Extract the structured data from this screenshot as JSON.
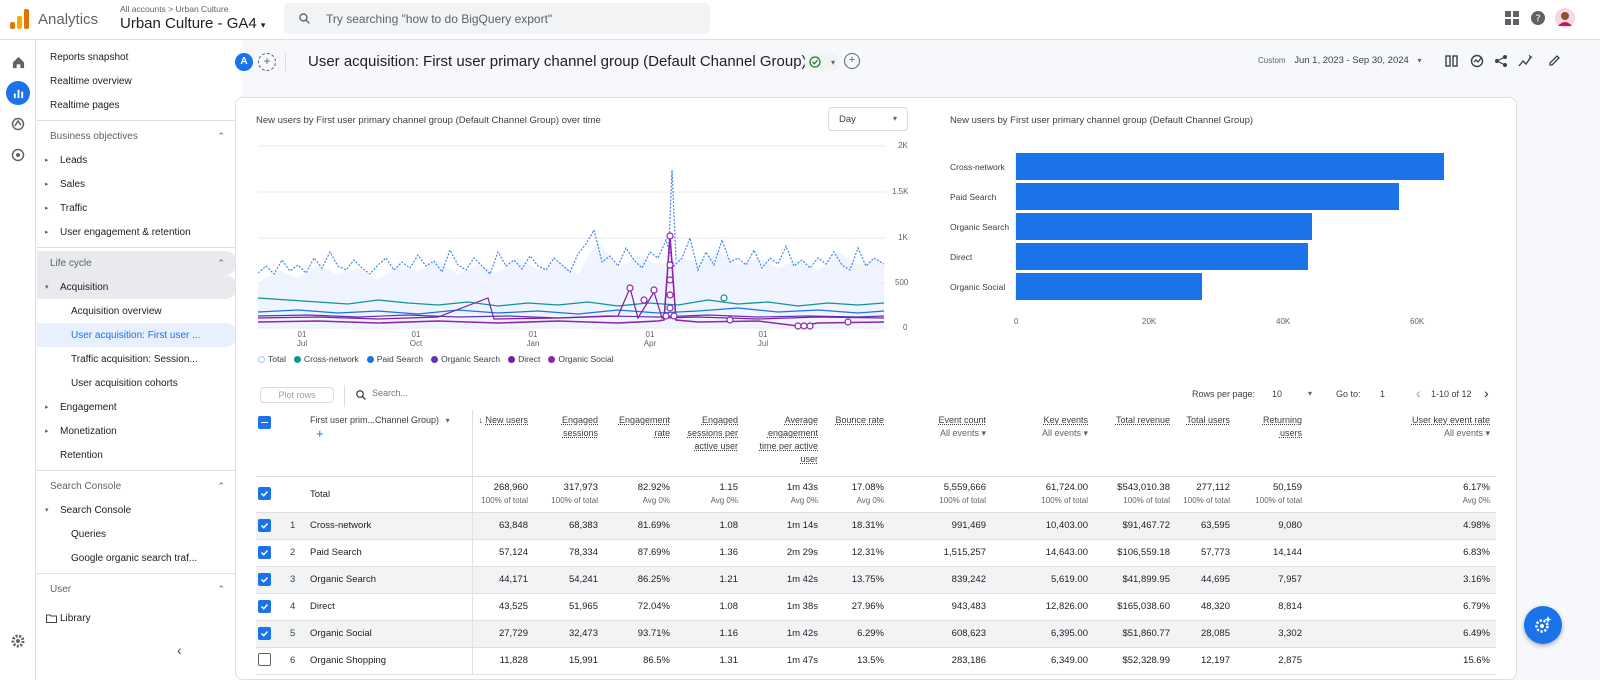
{
  "top": {
    "app_name": "Analytics",
    "breadcrumb": "All accounts > Urban Culture",
    "property": "Urban Culture - GA4",
    "search_placeholder": "Try searching \"how to do BigQuery export\""
  },
  "nav": {
    "items": [
      {
        "label": "Reports snapshot"
      },
      {
        "label": "Realtime overview"
      },
      {
        "label": "Realtime pages"
      }
    ],
    "section_business": "Business objectives",
    "business": [
      "Leads",
      "Sales",
      "Traffic",
      "User engagement & retention"
    ],
    "section_lifecycle": "Life cycle",
    "acquisition": "Acquisition",
    "acq_children": [
      "Acquisition overview",
      "User acquisition: First user ...",
      "Traffic acquisition: Session...",
      "User acquisition cohorts"
    ],
    "lifecycle_rest": [
      "Engagement",
      "Monetization",
      "Retention"
    ],
    "section_search_console": "Search Console",
    "search_console": "Search Console",
    "sc_children": [
      "Queries",
      "Google organic search traf..."
    ],
    "section_user": "User",
    "library": "Library"
  },
  "header": {
    "avatar_letter": "A",
    "title": "User acquisition: First user primary channel group (Default Channel Group)",
    "date_label": "Custom",
    "date_range": "Jun 1, 2023 - Sep 30, 2024"
  },
  "line_chart": {
    "title": "New users by First user primary channel group (Default Channel Group) over time",
    "granularity": "Day",
    "y_ticks": [
      "2K",
      "1.5K",
      "1K",
      "500",
      "0"
    ],
    "x_ticks": [
      [
        "01",
        "Jul"
      ],
      [
        "01",
        "Oct"
      ],
      [
        "01",
        "Jan"
      ],
      [
        "01",
        "Apr"
      ],
      [
        "01",
        "Jul"
      ]
    ],
    "legend": [
      {
        "name": "Total",
        "color": "#a8c7fa"
      },
      {
        "name": "Cross-network",
        "color": "#12939a"
      },
      {
        "name": "Paid Search",
        "color": "#1a73e8"
      },
      {
        "name": "Organic Search",
        "color": "#5e35b1"
      },
      {
        "name": "Direct",
        "color": "#7b1fa2"
      },
      {
        "name": "Organic Social",
        "color": "#8e24aa"
      }
    ]
  },
  "chart_data": {
    "type": "bar",
    "title": "New users by First user primary channel group (Default Channel Group)",
    "categories": [
      "Cross-network",
      "Paid Search",
      "Organic Search",
      "Direct",
      "Organic Social"
    ],
    "values": [
      63848,
      57124,
      44171,
      43525,
      27729
    ],
    "x_ticks": [
      "0",
      "20K",
      "40K",
      "60K"
    ],
    "xlim": [
      0,
      70000
    ]
  },
  "table_toolbar": {
    "plot_rows": "Plot rows",
    "search_placeholder": "Search...",
    "rows_per_page_label": "Rows per page:",
    "rows_per_page": "10",
    "goto_label": "Go to:",
    "goto_value": "1",
    "page_info": "1-10 of 12"
  },
  "table": {
    "dimension_header": "First user prim...Channel Group)",
    "columns": [
      {
        "name": "New users",
        "sub": ""
      },
      {
        "name": "Engaged sessions",
        "sub": ""
      },
      {
        "name": "Engagement rate",
        "sub": ""
      },
      {
        "name": "Engaged sessions per active user",
        "sub": ""
      },
      {
        "name": "Average engagement time per active user",
        "sub": ""
      },
      {
        "name": "Bounce rate",
        "sub": ""
      },
      {
        "name": "Event count",
        "sub": "All events"
      },
      {
        "name": "Key events",
        "sub": "All events"
      },
      {
        "name": "Total revenue",
        "sub": ""
      },
      {
        "name": "Total users",
        "sub": ""
      },
      {
        "name": "Returning users",
        "sub": ""
      },
      {
        "name": "User key event rate",
        "sub": "All events"
      }
    ],
    "total": {
      "label": "Total",
      "values": [
        "268,960",
        "317,973",
        "82.92%",
        "1.15",
        "1m 43s",
        "17.08%",
        "5,559,666",
        "61,724.00",
        "$543,010.38",
        "277,112",
        "50,159",
        "6.17%"
      ],
      "subs": [
        "100% of total",
        "100% of total",
        "Avg 0%",
        "Avg 0%",
        "Avg 0%",
        "Avg 0%",
        "100% of total",
        "100% of total",
        "100% of total",
        "100% of total",
        "100% of total",
        "Avg 0%"
      ]
    },
    "rows": [
      {
        "idx": "1",
        "channel": "Cross-network",
        "checked": true,
        "values": [
          "63,848",
          "68,383",
          "81.69%",
          "1.08",
          "1m 14s",
          "18.31%",
          "991,469",
          "10,403.00",
          "$91,467.72",
          "63,595",
          "9,080",
          "4.98%"
        ]
      },
      {
        "idx": "2",
        "channel": "Paid Search",
        "checked": true,
        "values": [
          "57,124",
          "78,334",
          "87.69%",
          "1.36",
          "2m 29s",
          "12.31%",
          "1,515,257",
          "14,643.00",
          "$106,559.18",
          "57,773",
          "14,144",
          "6.83%"
        ]
      },
      {
        "idx": "3",
        "channel": "Organic Search",
        "checked": true,
        "values": [
          "44,171",
          "54,241",
          "86.25%",
          "1.21",
          "1m 42s",
          "13.75%",
          "839,242",
          "5,619.00",
          "$41,899.95",
          "44,695",
          "7,957",
          "3.16%"
        ]
      },
      {
        "idx": "4",
        "channel": "Direct",
        "checked": true,
        "values": [
          "43,525",
          "51,965",
          "72.04%",
          "1.08",
          "1m 38s",
          "27.96%",
          "943,483",
          "12,826.00",
          "$165,038.60",
          "48,320",
          "8,814",
          "6.79%"
        ]
      },
      {
        "idx": "5",
        "channel": "Organic Social",
        "checked": true,
        "values": [
          "27,729",
          "32,473",
          "93.71%",
          "1.16",
          "1m 42s",
          "6.29%",
          "608,623",
          "6,395.00",
          "$51,860.77",
          "28,085",
          "3,302",
          "6.49%"
        ]
      },
      {
        "idx": "6",
        "channel": "Organic Shopping",
        "checked": false,
        "values": [
          "11,828",
          "15,991",
          "86.5%",
          "1.31",
          "1m 47s",
          "13.5%",
          "283,186",
          "6,349.00",
          "$52,328.99",
          "12,197",
          "2,875",
          "15.6%"
        ]
      }
    ]
  }
}
